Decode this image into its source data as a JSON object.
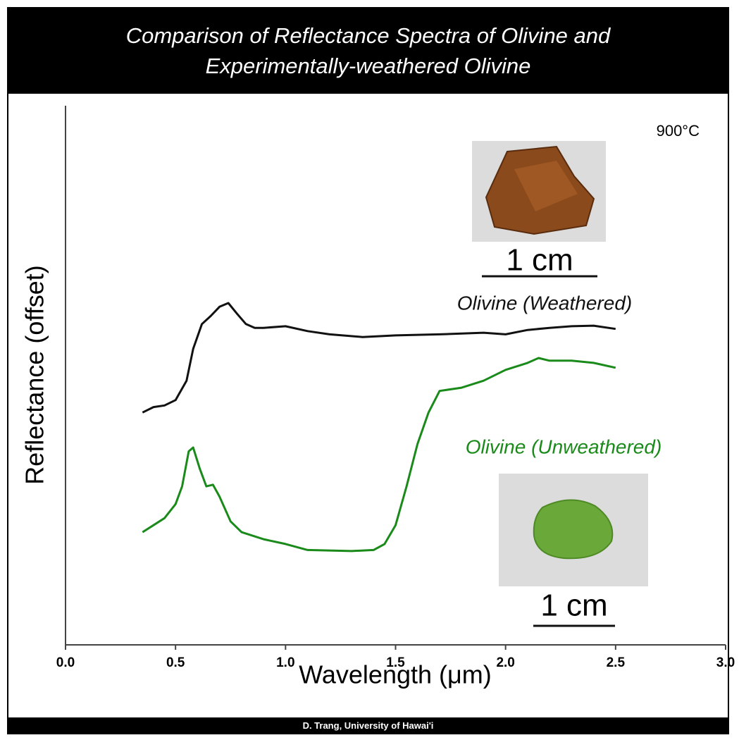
{
  "chart_data": {
    "type": "line",
    "title": "Comparison of Reflectance Spectra of Olivine and Experimentally-weathered Olivine",
    "xlabel": "Wavelength (μm)",
    "ylabel": "Reflectance (offset)",
    "annotations": [
      "900°C",
      "1 cm",
      "1 cm"
    ],
    "credit": "D. Trang, University of Hawai'i",
    "xlim": [
      0,
      3
    ],
    "ylim": [
      0,
      100
    ],
    "xticks": [
      {
        "value": 0,
        "label": "0.0"
      },
      {
        "value": 0.5,
        "label": "0.5"
      },
      {
        "value": 1,
        "label": "1.0"
      },
      {
        "value": 1.5,
        "label": "1.5"
      },
      {
        "value": 2,
        "label": "2.0"
      },
      {
        "value": 2.5,
        "label": "2.5"
      },
      {
        "value": 3,
        "label": "3.0"
      }
    ],
    "series": [
      {
        "name": "Olivine (Weathered)",
        "color": "#111111",
        "x": [
          0.35,
          0.4,
          0.45,
          0.5,
          0.55,
          0.58,
          0.62,
          0.66,
          0.7,
          0.74,
          0.78,
          0.82,
          0.86,
          0.9,
          1.0,
          1.1,
          1.2,
          1.35,
          1.5,
          1.7,
          1.9,
          2.0,
          2.1,
          2.2,
          2.3,
          2.4,
          2.5
        ],
        "values": [
          43.1,
          44.1,
          44.4,
          45.4,
          49.0,
          54.9,
          59.5,
          61.0,
          62.7,
          63.4,
          61.4,
          59.5,
          58.8,
          58.8,
          59.1,
          58.2,
          57.6,
          57.1,
          57.4,
          57.6,
          57.9,
          57.6,
          58.4,
          58.8,
          59.1,
          59.2,
          58.6
        ]
      },
      {
        "name": "Olivine (Unweathered)",
        "color": "#1a8a1a",
        "x": [
          0.35,
          0.4,
          0.45,
          0.5,
          0.53,
          0.56,
          0.58,
          0.61,
          0.64,
          0.67,
          0.7,
          0.75,
          0.8,
          0.9,
          1.0,
          1.1,
          1.2,
          1.3,
          1.4,
          1.45,
          1.5,
          1.55,
          1.6,
          1.65,
          1.7,
          1.8,
          1.9,
          2.0,
          2.1,
          2.15,
          2.2,
          2.3,
          2.4,
          2.5
        ],
        "values": [
          20.9,
          22.2,
          23.5,
          26.1,
          29.4,
          35.9,
          36.6,
          32.7,
          29.4,
          29.7,
          27.5,
          22.9,
          20.9,
          19.6,
          18.7,
          17.6,
          17.5,
          17.4,
          17.6,
          18.7,
          22.2,
          29.4,
          37.3,
          43.1,
          47.1,
          47.7,
          49.0,
          51.0,
          52.3,
          53.2,
          52.7,
          52.7,
          52.3,
          51.4
        ]
      }
    ]
  }
}
